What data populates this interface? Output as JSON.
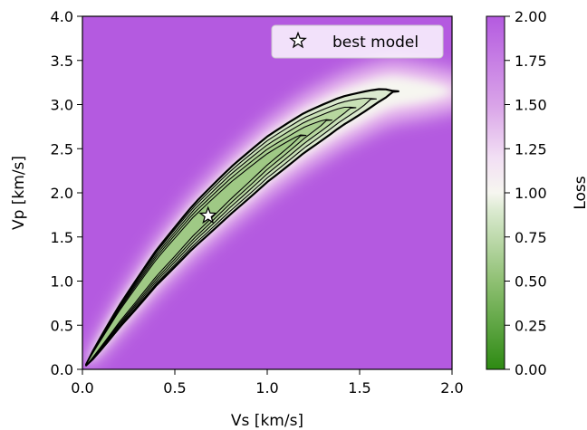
{
  "chart_data": {
    "type": "heatmap",
    "xlabel": "Vs [km/s]",
    "ylabel": "Vp [km/s]",
    "xlim": [
      0.0,
      2.0
    ],
    "ylim": [
      0.0,
      4.0
    ],
    "xticks": [
      "0.0",
      "0.5",
      "1.0",
      "1.5",
      "2.0"
    ],
    "xtick_values": [
      0.0,
      0.5,
      1.0,
      1.5,
      2.0
    ],
    "yticks": [
      "0.0",
      "0.5",
      "1.0",
      "1.5",
      "2.0",
      "2.5",
      "3.0",
      "3.5",
      "4.0"
    ],
    "ytick_values": [
      0.0,
      0.5,
      1.0,
      1.5,
      2.0,
      2.5,
      3.0,
      3.5,
      4.0
    ],
    "colorbar": {
      "label": "Loss",
      "range": [
        0.0,
        2.0
      ],
      "ticks": [
        "0.00",
        "0.25",
        "0.50",
        "0.75",
        "1.00",
        "1.25",
        "1.50",
        "1.75",
        "2.00"
      ],
      "tick_values": [
        0.0,
        0.25,
        0.5,
        0.75,
        1.0,
        1.25,
        1.5,
        1.75,
        2.0
      ],
      "colormap_stops": [
        "#2e8a13",
        "#b0d29a",
        "#f6f6f0",
        "#ecc4ef",
        "#b45ae0"
      ]
    },
    "legend": {
      "entries": [
        {
          "label": "best model",
          "marker": "star-icon"
        }
      ],
      "position": "top-right"
    },
    "best_model": {
      "vs": 0.68,
      "vp": 1.74
    },
    "loss_valley": {
      "ridge": [
        [
          0.02,
          0.05
        ],
        [
          0.2,
          0.6
        ],
        [
          0.4,
          1.15
        ],
        [
          0.6,
          1.62
        ],
        [
          0.8,
          2.02
        ],
        [
          1.0,
          2.38
        ],
        [
          1.2,
          2.68
        ],
        [
          1.4,
          2.92
        ],
        [
          1.6,
          3.1
        ],
        [
          1.68,
          3.15
        ]
      ],
      "contour_levels": [
        0.5,
        0.6,
        0.7,
        0.8,
        0.9
      ]
    }
  }
}
